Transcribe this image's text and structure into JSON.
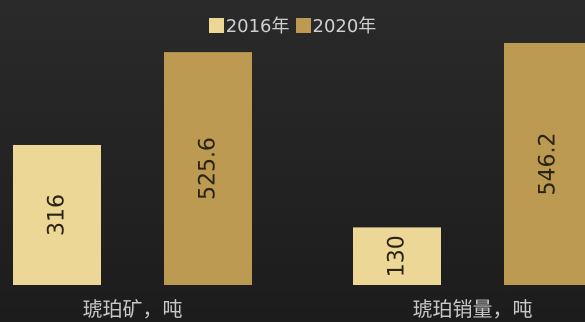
{
  "chart_data": {
    "type": "bar",
    "categories": [
      "琥珀矿，吨",
      "琥珀销量，吨"
    ],
    "series": [
      {
        "name": "2016年",
        "values": [
          316,
          130
        ],
        "color": "#ecd797"
      },
      {
        "name": "2020年",
        "values": [
          525.6,
          546.2
        ],
        "color": "#bc9a52"
      }
    ],
    "ylim": [
      0,
      560
    ],
    "legend_position": "top-center",
    "grid": false,
    "value_labels": "vertical-inside"
  }
}
